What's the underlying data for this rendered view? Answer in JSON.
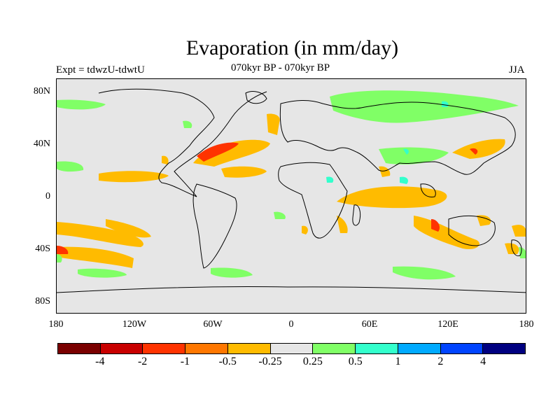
{
  "title": "Evaporation (in mm/day)",
  "subtitle_left": "Expt = tdwzU-tdwtU",
  "subtitle_center": "070kyr BP - 070kyr BP",
  "subtitle_right": "JJA",
  "y_tick_labels": [
    "80N",
    "40N",
    "0",
    "40S",
    "80S"
  ],
  "x_tick_labels": [
    "180",
    "120W",
    "60W",
    "0",
    "60E",
    "120E",
    "180"
  ],
  "colorbar": {
    "colors": [
      "#7a0000",
      "#c80000",
      "#ff3300",
      "#ff7700",
      "#ffbb00",
      "#e6e6e6",
      "#80ff66",
      "#33ffcc",
      "#00aaff",
      "#0044ff",
      "#000080"
    ],
    "labels": [
      "-4",
      "-2",
      "-1",
      "-0.5",
      "-0.25",
      "0.25",
      "0.5",
      "1",
      "2",
      "4"
    ]
  },
  "colors": {
    "background": "#e6e6e6",
    "coastline": "#000000"
  }
}
